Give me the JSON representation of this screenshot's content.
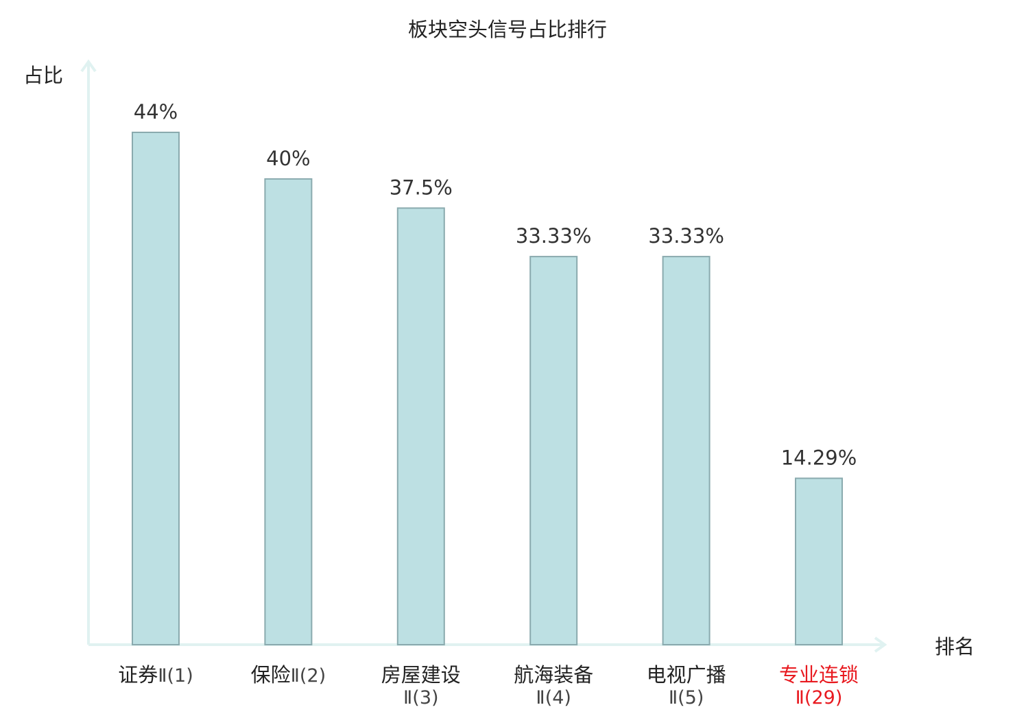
{
  "chart_data": {
    "type": "bar",
    "title": "板块空头信号占比排行",
    "ylabel": "占比",
    "xlabel": "排名",
    "ylim": [
      0,
      50
    ],
    "grid": false,
    "categories": [
      {
        "name": "证券",
        "rank": "Ⅱ(1)",
        "highlight": false
      },
      {
        "name": "保险",
        "rank": "Ⅱ(2)",
        "highlight": false
      },
      {
        "name": "房屋建设",
        "rank": "Ⅱ(3)",
        "highlight": false
      },
      {
        "name": "航海装备",
        "rank": "Ⅱ(4)",
        "highlight": false
      },
      {
        "name": "电视广播",
        "rank": "Ⅱ(5)",
        "highlight": false
      },
      {
        "name": "专业连锁",
        "rank": "Ⅱ(29)",
        "highlight": true
      }
    ],
    "values": [
      44,
      40,
      37.5,
      33.33,
      33.33,
      14.29
    ],
    "value_labels": [
      "44%",
      "40%",
      "37.5%",
      "33.33%",
      "33.33%",
      "14.29%"
    ],
    "colors": {
      "bar_fill": "#bde0e3",
      "bar_stroke": "#8aaaae",
      "axis": "#e0f2f1",
      "text": "#333333",
      "highlight": "#e8191f"
    }
  }
}
